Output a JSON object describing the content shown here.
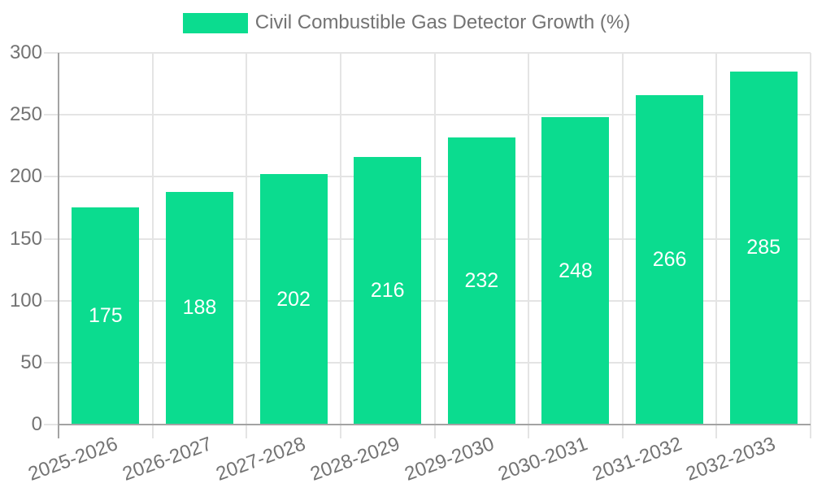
{
  "chart_data": {
    "type": "bar",
    "title": "Civil Combustible Gas Detector Growth (%)",
    "legend": {
      "position": "top-center",
      "entries": [
        "Civil Combustible Gas Detector Growth (%)"
      ]
    },
    "categories": [
      "2025-2026",
      "2026-2027",
      "2027-2028",
      "2028-2029",
      "2029-2030",
      "2030-2031",
      "2031-2032",
      "2032-2033"
    ],
    "values": [
      175,
      188,
      202,
      216,
      232,
      248,
      266,
      285
    ],
    "bar_value_labels": [
      "175",
      "188",
      "202",
      "216",
      "232",
      "248",
      "266",
      "285"
    ],
    "xlabel": "",
    "ylabel": "",
    "ylim": [
      0,
      300
    ],
    "yticks": [
      0,
      50,
      100,
      150,
      200,
      250,
      300
    ],
    "grid": true,
    "colors": {
      "bar": "#0bdc8f",
      "grid": "#e4e4e4",
      "axis": "#a3a3a3",
      "tick_text": "#737373",
      "legend_text": "#737373",
      "bar_value_text": "#ffffff",
      "background": "#ffffff"
    }
  }
}
